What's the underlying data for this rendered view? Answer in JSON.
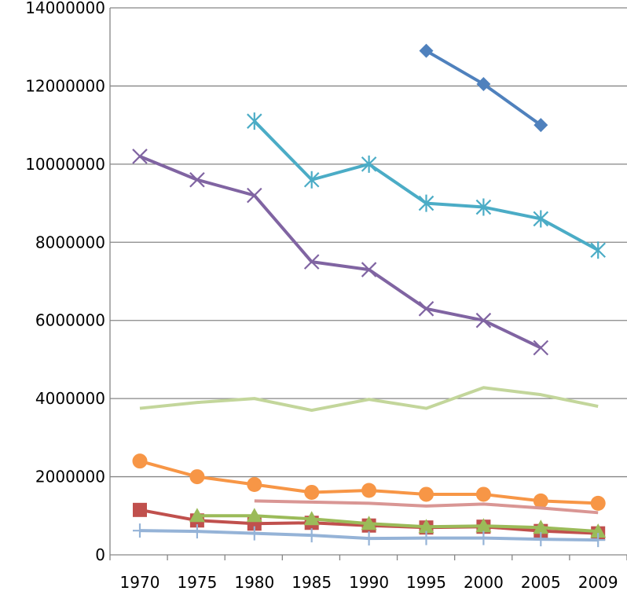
{
  "chart_data": {
    "type": "line",
    "categories": [
      "1970",
      "1975",
      "1980",
      "1985",
      "1990",
      "1995",
      "2000",
      "2005",
      "2009"
    ],
    "ylim": [
      0,
      14000000
    ],
    "yticks": [
      "0",
      "2000000",
      "4000000",
      "6000000",
      "8000000",
      "10000000",
      "12000000",
      "14000000"
    ],
    "grid": "horizontal",
    "legend": "none",
    "series": [
      {
        "color": "#4F81BD",
        "marker": "diamond",
        "values": [
          null,
          null,
          null,
          null,
          null,
          12900000,
          12050000,
          11000000,
          null
        ]
      },
      {
        "color": "#C0504D",
        "marker": "square",
        "values": [
          1150000,
          880000,
          800000,
          820000,
          750000,
          700000,
          720000,
          610000,
          550000
        ]
      },
      {
        "color": "#9BBB59",
        "marker": "triangle",
        "values": [
          null,
          1000000,
          1000000,
          920000,
          800000,
          720000,
          740000,
          700000,
          600000
        ]
      },
      {
        "color": "#8064A2",
        "marker": "x",
        "values": [
          10200000,
          9600000,
          9200000,
          7500000,
          7300000,
          6300000,
          6000000,
          5300000,
          null
        ]
      },
      {
        "color": "#4BACC6",
        "marker": "asterisk",
        "values": [
          null,
          null,
          11100000,
          9600000,
          10000000,
          9000000,
          8900000,
          8600000,
          7800000
        ]
      },
      {
        "color": "#F79646",
        "marker": "circle",
        "values": [
          2400000,
          2000000,
          1800000,
          1600000,
          1650000,
          1550000,
          1550000,
          1380000,
          1320000
        ]
      },
      {
        "color": "#95B3D7",
        "marker": "plus",
        "values": [
          620000,
          600000,
          550000,
          500000,
          420000,
          430000,
          430000,
          400000,
          380000
        ]
      },
      {
        "color": "#D99694",
        "marker": "none",
        "values": [
          null,
          null,
          1380000,
          1350000,
          1320000,
          1250000,
          1300000,
          1200000,
          1080000
        ]
      },
      {
        "color": "#C3D69B",
        "marker": "none",
        "values": [
          3750000,
          3900000,
          4000000,
          3700000,
          3980000,
          3750000,
          4280000,
          4100000,
          3800000
        ]
      }
    ]
  }
}
